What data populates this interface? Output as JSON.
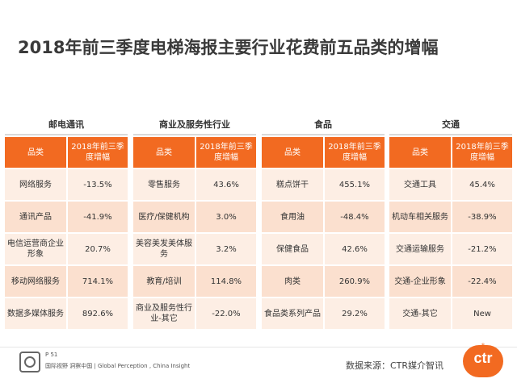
{
  "title": "2018年前三季度电梯海报主要行业花费前五品类的增幅",
  "header": {
    "col1": "品类",
    "col2": "2018年前三季度增幅"
  },
  "tables": [
    {
      "category": "邮电通讯",
      "rows": [
        {
          "item": "网络服务",
          "value": "-13.5%"
        },
        {
          "item": "通讯产品",
          "value": "-41.9%"
        },
        {
          "item": "电信运营商企业形象",
          "value": "20.7%"
        },
        {
          "item": "移动网络服务",
          "value": "714.1%"
        },
        {
          "item": "数据多媒体服务",
          "value": "892.6%"
        }
      ]
    },
    {
      "category": "商业及服务性行业",
      "rows": [
        {
          "item": "零售服务",
          "value": "43.6%"
        },
        {
          "item": "医疗/保健机构",
          "value": "3.0%"
        },
        {
          "item": "美容美发美体服务",
          "value": "3.2%"
        },
        {
          "item": "教育/培训",
          "value": "114.8%"
        },
        {
          "item": "商业及服务性行业-其它",
          "value": "-22.0%"
        }
      ]
    },
    {
      "category": "食品",
      "rows": [
        {
          "item": "糕点饼干",
          "value": "455.1%"
        },
        {
          "item": "食用油",
          "value": "-48.4%"
        },
        {
          "item": "保健食品",
          "value": "42.6%"
        },
        {
          "item": "肉类",
          "value": "260.9%"
        },
        {
          "item": "食品类系列产品",
          "value": "29.2%"
        }
      ]
    },
    {
      "category": "交通",
      "rows": [
        {
          "item": "交通工具",
          "value": "45.4%"
        },
        {
          "item": "机动车相关服务",
          "value": "-38.9%"
        },
        {
          "item": "交通运输服务",
          "value": "-21.2%"
        },
        {
          "item": "交通-企业形象",
          "value": "-22.4%"
        },
        {
          "item": "交通-其它",
          "value": "New"
        }
      ]
    }
  ],
  "footer": {
    "page": "P 51",
    "slogan": "国际视野 洞察中国 | Global Perception , China Insight",
    "source": "数据来源：CTR媒介智讯",
    "logo_text": "ctr",
    "logo_reg": "®"
  },
  "colors": {
    "accent": "#f26a21",
    "row_light": "#fdeee4",
    "row_dark": "#fbe0cf"
  },
  "icons": {
    "left_logo": "certification-badge-icon",
    "right_logo": "ctr-logo"
  }
}
